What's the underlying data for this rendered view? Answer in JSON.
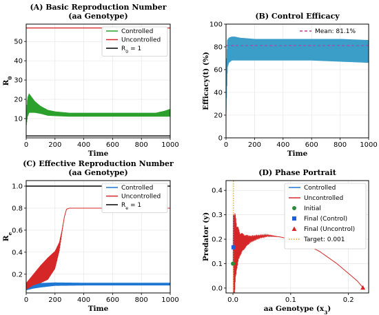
{
  "chart_data": [
    {
      "id": "A",
      "type": "line",
      "title": "(A) Basic Reproduction Number",
      "subtitle": "(aa Genotype)",
      "xlabel": "Time",
      "ylabel": "R",
      "ylabel_sub": "0",
      "xlim": [
        0,
        1000
      ],
      "ylim": [
        0,
        59
      ],
      "xticks": [
        0,
        200,
        400,
        600,
        800,
        1000
      ],
      "yticks": [
        10,
        20,
        30,
        40,
        50
      ],
      "grid": true,
      "legend_position": "upper-right",
      "series": [
        {
          "name": "Controlled",
          "color": "#2ca02c",
          "style": "oscillating",
          "x": [
            0,
            10,
            20,
            40,
            60,
            100,
            150,
            200,
            300,
            500,
            700,
            900,
            960,
            1000
          ],
          "y": [
            9,
            16,
            18,
            17,
            16,
            14.5,
            13,
            12.5,
            12,
            12,
            12,
            12,
            12.5,
            13
          ],
          "amplitude": [
            3,
            5,
            5,
            4,
            3,
            2,
            1.5,
            1.2,
            1,
            1,
            1,
            1,
            1.5,
            2
          ]
        },
        {
          "name": "Uncontrolled",
          "color": "#d62728",
          "style": "line",
          "x": [
            0,
            1000
          ],
          "y": [
            57,
            57
          ]
        },
        {
          "name": "R_0 = 1",
          "legend_text": "R",
          "legend_sub": "0",
          "legend_suffix": " = 1",
          "color": "#000000",
          "style": "line",
          "x": [
            0,
            1000
          ],
          "y": [
            1,
            1
          ]
        }
      ]
    },
    {
      "id": "B",
      "type": "line",
      "title": "(B) Control Efficacy",
      "xlabel": "Time",
      "ylabel": "Efficacy(t) (%)",
      "xlim": [
        0,
        1000
      ],
      "ylim": [
        0,
        100
      ],
      "xticks": [
        0,
        200,
        400,
        600,
        800,
        1000
      ],
      "yticks": [
        0,
        20,
        40,
        60,
        80,
        100
      ],
      "grid": true,
      "legend_position": "upper-right",
      "series": [
        {
          "name": "Efficacy",
          "color": "#3a9ec9",
          "style": "band",
          "x": [
            0,
            5,
            10,
            20,
            40,
            60,
            100,
            200,
            400,
            600,
            800,
            1000
          ],
          "lower": [
            20,
            40,
            62,
            66,
            68,
            68,
            68,
            68,
            68,
            68,
            67,
            66
          ],
          "upper": [
            22,
            70,
            86,
            88,
            89,
            89,
            88,
            87,
            87,
            87,
            87,
            86
          ]
        },
        {
          "name": "Mean: 81.1%",
          "color": "#c0369c",
          "style": "dashed",
          "x": [
            0,
            1000
          ],
          "y": [
            81.1,
            81.1
          ]
        }
      ]
    },
    {
      "id": "C",
      "type": "line",
      "title": "(C) Effective Reproduction Number",
      "subtitle": "(aa Genotype)",
      "xlabel": "Time",
      "ylabel": "R",
      "ylabel_sub": "e",
      "xlim": [
        0,
        1000
      ],
      "ylim": [
        0.03,
        1.05
      ],
      "xticks": [
        0,
        200,
        400,
        600,
        800,
        1000
      ],
      "yticks": [
        0.2,
        0.4,
        0.6,
        0.8,
        1.0
      ],
      "ytick_labels": [
        "0.2",
        "0.4",
        "0.6",
        "0.8",
        "1.0"
      ],
      "grid": true,
      "legend_position": "upper-right",
      "series": [
        {
          "name": "Controlled",
          "color": "#1f77d4",
          "style": "oscillating",
          "x": [
            0,
            50,
            100,
            200,
            400,
            600,
            800,
            1000
          ],
          "y": [
            0.07,
            0.09,
            0.1,
            0.11,
            0.11,
            0.11,
            0.11,
            0.11
          ],
          "amplitude": [
            0.015,
            0.02,
            0.02,
            0.015,
            0.012,
            0.012,
            0.012,
            0.012
          ]
        },
        {
          "name": "Uncontrolled",
          "color": "#d62728",
          "style": "oscillating",
          "x": [
            0,
            50,
            100,
            150,
            200,
            230,
            250,
            265,
            280,
            300,
            1000
          ],
          "y": [
            0.09,
            0.15,
            0.2,
            0.25,
            0.33,
            0.45,
            0.6,
            0.72,
            0.79,
            0.8,
            0.8
          ],
          "amplitude": [
            0.03,
            0.05,
            0.08,
            0.1,
            0.08,
            0.04,
            0.01,
            0,
            0,
            0,
            0
          ]
        },
        {
          "name": "R_e = 1",
          "legend_text": "R",
          "legend_sub": "e",
          "legend_suffix": " = 1",
          "color": "#000000",
          "style": "line",
          "x": [
            0,
            1000
          ],
          "y": [
            1.0,
            1.0
          ]
        }
      ]
    },
    {
      "id": "D",
      "type": "line",
      "title": "(D) Phase Portrait",
      "xlabel": "aa Genotype (x",
      "xlabel_sub": "3",
      "xlabel_suffix": ")",
      "ylabel": "Predator (y)",
      "xlim": [
        -0.012,
        0.235
      ],
      "ylim": [
        -0.02,
        0.44
      ],
      "xticks": [
        0.0,
        0.1,
        0.2
      ],
      "xtick_labels": [
        "0.0",
        "0.1",
        "0.2"
      ],
      "yticks": [
        0.0,
        0.1,
        0.2,
        0.3,
        0.4
      ],
      "ytick_labels": [
        "0.0",
        "0.1",
        "0.2",
        "0.3",
        "0.4"
      ],
      "grid": true,
      "legend_position": "upper-right",
      "series": [
        {
          "name": "Controlled",
          "color": "#1f77d4",
          "style": "line",
          "x": [
            0.0005,
            0.0008,
            0.0006,
            0.0009,
            0.0007
          ],
          "y": [
            0.1,
            0.3,
            0.12,
            0.28,
            0.17
          ]
        },
        {
          "name": "Uncontrolled",
          "color": "#d62728",
          "style": "spiral",
          "x": [
            0.001,
            0.003,
            0.006,
            0.012,
            0.02,
            0.03,
            0.045,
            0.06,
            0.08,
            0.1,
            0.12,
            0.15,
            0.18,
            0.2,
            0.215,
            0.225
          ],
          "y": [
            0.1,
            0.15,
            0.17,
            0.18,
            0.19,
            0.2,
            0.21,
            0.215,
            0.21,
            0.2,
            0.185,
            0.15,
            0.1,
            0.06,
            0.03,
            0.002
          ],
          "amplitude": [
            0.2,
            0.17,
            0.1,
            0.05,
            0.03,
            0.015,
            0.008,
            0.004,
            0,
            0,
            0,
            0,
            0,
            0,
            0,
            0
          ]
        },
        {
          "name": "Initial",
          "color": "#2e8b3d",
          "style": "marker",
          "marker": "circle",
          "x": [
            0.0
          ],
          "y": [
            0.1
          ]
        },
        {
          "name": "Final (Control)",
          "color": "#1f5fd4",
          "style": "marker",
          "marker": "square",
          "x": [
            0.001
          ],
          "y": [
            0.167
          ]
        },
        {
          "name": "Final (Uncontrol)",
          "color": "#d62728",
          "style": "marker",
          "marker": "triangle",
          "x": [
            0.225
          ],
          "y": [
            0.002
          ]
        },
        {
          "name": "Target: 0.001",
          "color": "#e69a17",
          "style": "dotted-vertical",
          "x": [
            0.001,
            0.001
          ],
          "y": [
            -0.02,
            0.44
          ]
        }
      ]
    }
  ]
}
